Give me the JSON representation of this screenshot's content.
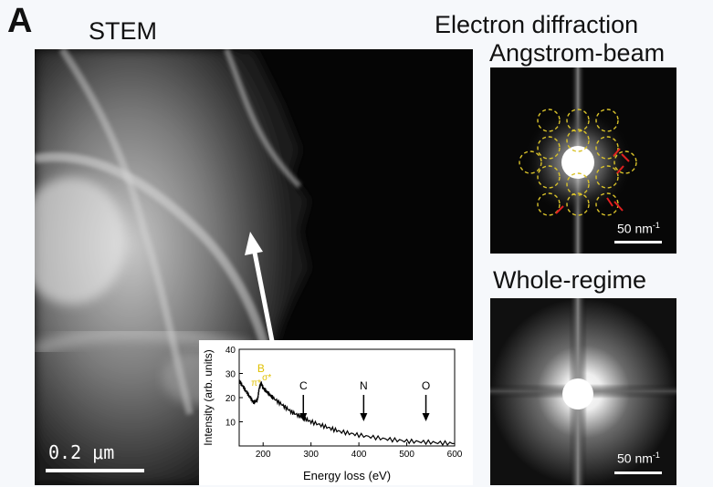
{
  "panel_letter": "A",
  "stem": {
    "title": "STEM",
    "scalebar_label": "0.2 μm"
  },
  "diffraction": {
    "title": "Electron diffraction",
    "angstrom": {
      "title": "Angstrom-beam",
      "scale_value": "50 nm",
      "scale_exp": "-1"
    },
    "whole": {
      "title": "Whole-regime",
      "scale_value": "50 nm",
      "scale_exp": "-1"
    }
  },
  "eels": {
    "xlabel": "Energy loss (eV)",
    "ylabel": "Intensity (arb. units)",
    "xticks": [
      "200",
      "300",
      "400",
      "500",
      "600"
    ],
    "yticks": [
      "10",
      "20",
      "30",
      "40"
    ],
    "edges": [
      {
        "label": "C",
        "energy": 284
      },
      {
        "label": "N",
        "energy": 410
      },
      {
        "label": "O",
        "energy": 540
      }
    ],
    "boron": {
      "label": "B",
      "pi": "π*",
      "sigma": "σ*"
    },
    "highlight_color": "#e0c000"
  },
  "chart_data": {
    "type": "line",
    "title": "",
    "xlabel": "Energy loss (eV)",
    "ylabel": "Intensity (arb. units)",
    "xlim": [
      150,
      600
    ],
    "ylim": [
      0,
      40
    ],
    "x": [
      150,
      160,
      170,
      180,
      188,
      192,
      196,
      200,
      210,
      220,
      240,
      260,
      280,
      300,
      330,
      360,
      400,
      450,
      500,
      550,
      600
    ],
    "y": [
      27,
      24,
      21,
      18,
      19,
      24,
      26,
      24,
      22,
      20,
      17,
      14,
      12,
      10,
      8,
      6,
      4.5,
      3,
      2,
      1.5,
      1
    ],
    "annotations": [
      "B",
      "π*",
      "σ*",
      "C",
      "N",
      "O"
    ]
  }
}
